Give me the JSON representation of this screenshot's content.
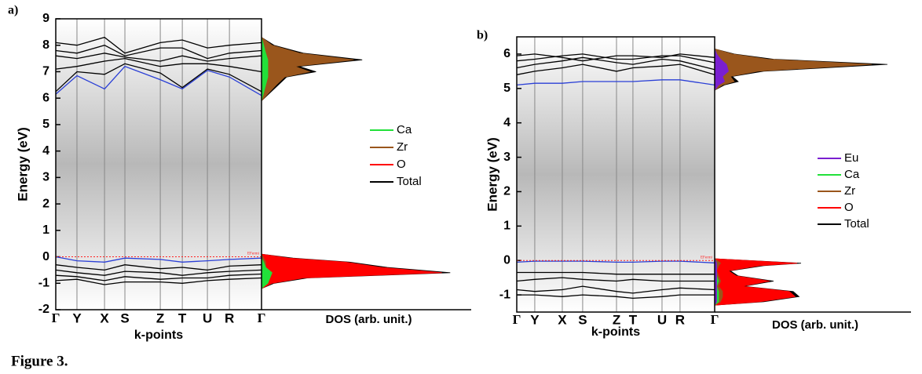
{
  "chart_data": [
    {
      "type": "band_dos",
      "panel_label": "a)",
      "ylabel": "Energy (eV)",
      "xlabel": "k-points",
      "ylim": [
        -2,
        9
      ],
      "yticks": [
        -2,
        -1,
        0,
        1,
        2,
        3,
        4,
        5,
        6,
        7,
        8,
        9
      ],
      "xticks": [
        {
          "value": 0,
          "label": "Γ"
        },
        {
          "value": 0.103,
          "label": "Y"
        },
        {
          "value": 0.237,
          "label": "X"
        },
        {
          "value": 0.336,
          "label": "S"
        },
        {
          "value": 0.508,
          "label": "Z"
        },
        {
          "value": 0.615,
          "label": "T"
        },
        {
          "value": 0.737,
          "label": "U"
        },
        {
          "value": 0.844,
          "label": "R"
        },
        {
          "value": 1,
          "label": "Γ"
        }
      ],
      "k": [
        0,
        0.103,
        0.237,
        0.336,
        0.508,
        0.615,
        0.737,
        0.844,
        1
      ],
      "bands": [
        {
          "color": "#2a3fd6",
          "values": [
            6.15,
            6.85,
            6.35,
            7.2,
            6.7,
            6.35,
            7.05,
            6.8,
            6.1
          ]
        },
        {
          "color": "#000000",
          "values": [
            6.25,
            7.0,
            6.9,
            7.3,
            6.95,
            6.4,
            7.1,
            6.9,
            6.25
          ]
        },
        {
          "color": "#000000",
          "values": [
            7.1,
            7.2,
            7.4,
            7.5,
            7.2,
            7.3,
            7.3,
            7.2,
            7.0
          ]
        },
        {
          "color": "#000000",
          "values": [
            7.6,
            7.5,
            7.7,
            7.55,
            7.4,
            7.6,
            7.4,
            7.5,
            7.6
          ]
        },
        {
          "color": "#000000",
          "values": [
            7.8,
            7.7,
            8.0,
            7.6,
            7.9,
            7.9,
            7.5,
            7.7,
            7.8
          ]
        },
        {
          "color": "#000000",
          "values": [
            8.1,
            8.0,
            8.3,
            7.7,
            8.1,
            8.2,
            7.9,
            8.0,
            8.1
          ]
        },
        {
          "color": "#2a3fd6",
          "values": [
            0,
            -0.15,
            -0.2,
            -0.05,
            -0.1,
            -0.2,
            -0.15,
            -0.1,
            -0.05
          ]
        },
        {
          "color": "#000000",
          "values": [
            -0.3,
            -0.4,
            -0.5,
            -0.3,
            -0.45,
            -0.4,
            -0.5,
            -0.35,
            -0.3
          ]
        },
        {
          "color": "#000000",
          "values": [
            -0.5,
            -0.6,
            -0.7,
            -0.55,
            -0.6,
            -0.7,
            -0.6,
            -0.55,
            -0.5
          ]
        },
        {
          "color": "#000000",
          "values": [
            -0.7,
            -0.75,
            -0.9,
            -0.75,
            -0.85,
            -0.8,
            -0.8,
            -0.7,
            -0.65
          ]
        },
        {
          "color": "#000000",
          "values": [
            -0.9,
            -0.85,
            -1.05,
            -0.95,
            -0.95,
            -1.0,
            -0.9,
            -0.85,
            -0.8
          ]
        }
      ],
      "fermi_level": 0,
      "fermi_label": "EFermi",
      "dos": {
        "xlabel": "DOS (arb. unit.)",
        "xlim": [
          0,
          10
        ],
        "energy": [
          -1.2,
          -1.0,
          -0.8,
          -0.6,
          -0.4,
          -0.2,
          -0.05,
          0.1,
          5.9,
          6.2,
          6.5,
          6.8,
          7.0,
          7.2,
          7.45,
          7.7,
          8.0,
          8.3
        ],
        "series": [
          {
            "name": "Ca",
            "color": "#22e03a",
            "values": [
              0,
              0.3,
              0.4,
              0.5,
              0.2,
              0.1,
              0,
              0,
              0,
              0.1,
              0.2,
              0.3,
              0.3,
              0.3,
              0.3,
              0.2,
              0.1,
              0
            ]
          },
          {
            "name": "Zr",
            "color": "#9a561c",
            "values": [
              0,
              0.1,
              0.2,
              0.3,
              0.2,
              0.2,
              0.1,
              0,
              0,
              0.35,
              0.7,
              1.1,
              2.3,
              1.6,
              4.4,
              1.8,
              0.5,
              0
            ]
          },
          {
            "name": "O",
            "color": "#ff0000",
            "values": [
              0,
              0.5,
              2.0,
              8.6,
              5.7,
              4.0,
              1.3,
              0,
              0,
              0.2,
              0.3,
              0.4,
              0.6,
              0.5,
              0.9,
              0.5,
              0.2,
              0
            ]
          },
          {
            "name": "Total",
            "color": "#000000",
            "values": [
              0,
              0.6,
              2.2,
              9.0,
              6.0,
              4.2,
              1.5,
              0,
              0,
              0.4,
              0.8,
              1.2,
              2.6,
              1.8,
              4.8,
              2.0,
              0.6,
              0
            ]
          }
        ]
      }
    },
    {
      "type": "band_dos",
      "panel_label": "b)",
      "ylabel": "Energy (eV)",
      "xlabel": "k-points",
      "ylim": [
        -1.5,
        6.5
      ],
      "yticks": [
        -1,
        0,
        1,
        2,
        3,
        4,
        5,
        6
      ],
      "xticks": [
        {
          "value": 0,
          "label": "Γ"
        },
        {
          "value": 0.091,
          "label": "Y"
        },
        {
          "value": 0.23,
          "label": "X"
        },
        {
          "value": 0.333,
          "label": "S"
        },
        {
          "value": 0.504,
          "label": "Z"
        },
        {
          "value": 0.587,
          "label": "T"
        },
        {
          "value": 0.734,
          "label": "U"
        },
        {
          "value": 0.825,
          "label": "R"
        },
        {
          "value": 1,
          "label": "Γ"
        }
      ],
      "k": [
        0,
        0.091,
        0.23,
        0.333,
        0.504,
        0.587,
        0.734,
        0.825,
        1
      ],
      "bands": [
        {
          "color": "#2a3fd6",
          "values": [
            5.1,
            5.15,
            5.15,
            5.2,
            5.2,
            5.2,
            5.25,
            5.25,
            5.1
          ]
        },
        {
          "color": "#000000",
          "values": [
            5.4,
            5.5,
            5.6,
            5.7,
            5.5,
            5.6,
            5.65,
            5.7,
            5.4
          ]
        },
        {
          "color": "#000000",
          "values": [
            5.6,
            5.7,
            5.8,
            5.9,
            5.75,
            5.7,
            5.85,
            5.8,
            5.55
          ]
        },
        {
          "color": "#000000",
          "values": [
            5.8,
            5.85,
            5.95,
            6.0,
            5.85,
            5.85,
            5.95,
            5.95,
            5.75
          ]
        },
        {
          "color": "#000000",
          "values": [
            5.95,
            6.0,
            5.9,
            5.8,
            5.95,
            5.95,
            5.9,
            6.0,
            5.9
          ]
        },
        {
          "color": "#2a3fd6",
          "values": [
            -0.05,
            -0.02,
            -0.02,
            -0.02,
            -0.05,
            -0.05,
            -0.02,
            -0.02,
            -0.07
          ]
        },
        {
          "color": "#000000",
          "values": [
            -0.35,
            -0.35,
            -0.35,
            -0.35,
            -0.4,
            -0.4,
            -0.4,
            -0.4,
            -0.4
          ]
        },
        {
          "color": "#000000",
          "values": [
            -0.6,
            -0.55,
            -0.5,
            -0.55,
            -0.6,
            -0.55,
            -0.6,
            -0.6,
            -0.6
          ]
        },
        {
          "color": "#000000",
          "values": [
            -0.85,
            -0.9,
            -0.85,
            -0.75,
            -0.9,
            -0.95,
            -0.85,
            -0.8,
            -0.85
          ]
        },
        {
          "color": "#000000",
          "values": [
            -1.0,
            -1.0,
            -1.05,
            -1.0,
            -1.05,
            -1.1,
            -1.05,
            -1.0,
            -1.0
          ]
        }
      ],
      "fermi_level": 0,
      "fermi_label": "EFermi",
      "dos": {
        "xlabel": "DOS (arb. unit.)",
        "xlim": [
          0,
          10
        ],
        "energy": [
          -1.3,
          -1.2,
          -1.05,
          -0.9,
          -0.75,
          -0.6,
          -0.45,
          -0.3,
          -0.15,
          -0.08,
          0.05,
          4.95,
          5.1,
          5.2,
          5.35,
          5.5,
          5.7,
          5.85,
          6.0,
          6.15
        ],
        "series": [
          {
            "name": "Eu",
            "color": "#7a1fd0",
            "values": [
              0,
              0.1,
              0.1,
              0.1,
              0.1,
              0.1,
              0.1,
              0.1,
              0.1,
              0.1,
              0,
              0,
              0.2,
              0.5,
              0.4,
              0.7,
              0.6,
              0.3,
              0.1,
              0
            ]
          },
          {
            "name": "Ca",
            "color": "#22e03a",
            "values": [
              0,
              0.2,
              0.2,
              0.2,
              0.1,
              0.2,
              0.1,
              0.1,
              0.1,
              0.1,
              0,
              0,
              0.1,
              0.3,
              0.3,
              0.4,
              0.3,
              0.2,
              0.1,
              0
            ]
          },
          {
            "name": "Zr",
            "color": "#9a561c",
            "values": [
              0,
              0.3,
              0.4,
              0.4,
              0.2,
              0.3,
              0.2,
              0.1,
              0.2,
              0.3,
              0,
              0,
              0.4,
              1.0,
              0.8,
              2.2,
              8.0,
              2.7,
              0.9,
              0
            ]
          },
          {
            "name": "O",
            "color": "#ff0000",
            "values": [
              0,
              2.3,
              4.1,
              3.8,
              1.4,
              2.8,
              1.1,
              0.7,
              2.3,
              4.2,
              0,
              0,
              0.2,
              0.3,
              0.3,
              0.5,
              0.8,
              0.4,
              0.2,
              0
            ]
          },
          {
            "name": "Total",
            "color": "#000000",
            "values": [
              0,
              2.5,
              4.3,
              4.0,
              1.5,
              3.0,
              1.2,
              0.8,
              2.5,
              4.4,
              0,
              0,
              0.5,
              1.2,
              0.9,
              2.5,
              8.8,
              3.0,
              1.0,
              0
            ]
          }
        ]
      }
    }
  ],
  "caption": "Figure 3."
}
